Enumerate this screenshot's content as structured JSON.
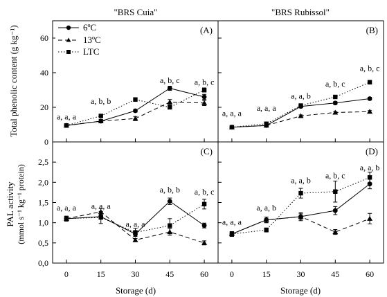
{
  "figure": {
    "column_titles": [
      "\"BRS Cuia\"",
      "\"BRS Rubissol\""
    ],
    "xlabel": "Storage (d)",
    "ylabel_top": "Total phenolic content (g kg⁻¹)",
    "ylabel_bottom_line1": "PAL activity",
    "ylabel_bottom_line2": "(mmol s⁻¹ kg⁻¹ protein)",
    "legend": [
      {
        "label": "6ºC",
        "style": "solid",
        "marker": "circle"
      },
      {
        "label": "13ºC",
        "style": "dashed",
        "marker": "triangle"
      },
      {
        "label": "LTC",
        "style": "dotted",
        "marker": "square"
      }
    ]
  },
  "chart_data": [
    {
      "type": "line",
      "panel": "(A)",
      "x": [
        0,
        15,
        30,
        45,
        60
      ],
      "xlim": [
        -6,
        66
      ],
      "ylim": [
        0,
        70
      ],
      "yticks": [
        "0",
        "20",
        "40",
        "60"
      ],
      "ytick_values": [
        0,
        20,
        40,
        60
      ],
      "series": [
        {
          "name": "6ºC",
          "values": [
            9.5,
            12,
            18,
            31,
            26
          ],
          "errors": [
            0.5,
            1,
            0.8,
            1.2,
            1.5
          ]
        },
        {
          "name": "13ºC",
          "values": [
            9.5,
            12,
            13.5,
            23,
            22.5
          ],
          "errors": [
            0.5,
            1,
            1.2,
            1.5,
            1.5
          ]
        },
        {
          "name": "LTC",
          "values": [
            9.5,
            15,
            24.5,
            20,
            30
          ],
          "errors": [
            0.5,
            0.8,
            0.8,
            1,
            1.2
          ]
        }
      ],
      "annotations": [
        {
          "x": 0,
          "y": 13,
          "text": "a, a, a"
        },
        {
          "x": 15,
          "y": 22,
          "text": "a, b, b"
        },
        {
          "x": 45,
          "y": 34,
          "text": "a, b, c"
        },
        {
          "x": 60,
          "y": 33,
          "text": "a, b, c"
        }
      ]
    },
    {
      "type": "line",
      "panel": "(B)",
      "x": [
        0,
        15,
        30,
        45,
        60
      ],
      "xlim": [
        -6,
        66
      ],
      "ylim": [
        0,
        70
      ],
      "yticks": [
        "0",
        "20",
        "40",
        "60"
      ],
      "ytick_values": [
        0,
        20,
        40,
        60
      ],
      "series": [
        {
          "name": "6ºC",
          "values": [
            8.5,
            9.5,
            20.5,
            22.5,
            25
          ],
          "errors": [
            0.4,
            0.5,
            0.8,
            0.8,
            0.8
          ]
        },
        {
          "name": "13ºC",
          "values": [
            8.5,
            9.5,
            15,
            17,
            17.5
          ],
          "errors": [
            0.4,
            0.5,
            0.6,
            0.6,
            0.6
          ]
        },
        {
          "name": "LTC",
          "values": [
            8.5,
            10.5,
            21,
            26,
            34.5
          ],
          "errors": [
            0.4,
            0.5,
            0.8,
            0.8,
            1
          ]
        }
      ],
      "annotations": [
        {
          "x": 0,
          "y": 15,
          "text": "a, a, a"
        },
        {
          "x": 15,
          "y": 18,
          "text": "a, a, a"
        },
        {
          "x": 30,
          "y": 25,
          "text": "a, a, b"
        },
        {
          "x": 45,
          "y": 32,
          "text": "a, b, c"
        },
        {
          "x": 60,
          "y": 41,
          "text": "a, b, c"
        }
      ]
    },
    {
      "type": "line",
      "panel": "(C)",
      "x": [
        0,
        15,
        30,
        45,
        60
      ],
      "xlim": [
        -6,
        66
      ],
      "ylim": [
        0,
        3
      ],
      "yticks": [
        "0,0",
        "0,5",
        "1,0",
        "1,5",
        "2,0",
        "2,5"
      ],
      "ytick_values": [
        0,
        0.5,
        1.0,
        1.5,
        2.0,
        2.5
      ],
      "series": [
        {
          "name": "6ºC",
          "values": [
            1.1,
            1.15,
            0.72,
            1.53,
            0.93
          ],
          "errors": [
            0.06,
            0.06,
            0.05,
            0.08,
            0.06
          ]
        },
        {
          "name": "13ºC",
          "values": [
            1.1,
            1.27,
            0.57,
            0.77,
            0.5
          ],
          "errors": [
            0.06,
            0.08,
            0.04,
            0.08,
            0.05
          ]
        },
        {
          "name": "LTC",
          "values": [
            1.1,
            1.13,
            0.76,
            0.93,
            1.46
          ],
          "errors": [
            0.06,
            0.15,
            0.1,
            0.17,
            0.12
          ]
        }
      ],
      "annotations": [
        {
          "x": 0,
          "y": 1.3,
          "text": "a, a, a"
        },
        {
          "x": 15,
          "y": 1.35,
          "text": "a, a, a"
        },
        {
          "x": 30,
          "y": 0.9,
          "text": "a, a, a"
        },
        {
          "x": 45,
          "y": 1.75,
          "text": "a, b, b"
        },
        {
          "x": 60,
          "y": 1.7,
          "text": "a, b, c"
        }
      ]
    },
    {
      "type": "line",
      "panel": "(D)",
      "x": [
        0,
        15,
        30,
        45,
        60
      ],
      "xlim": [
        -6,
        66
      ],
      "ylim": [
        0,
        3
      ],
      "yticks": [
        "0,0",
        "0,5",
        "1,0",
        "1,5",
        "2,0",
        "2,5"
      ],
      "ytick_values": [
        0,
        0.5,
        1.0,
        1.5,
        2.0,
        2.5
      ],
      "series": [
        {
          "name": "6ºC",
          "values": [
            0.72,
            1.07,
            1.15,
            1.3,
            1.96
          ],
          "errors": [
            0.06,
            0.07,
            0.1,
            0.1,
            0.12
          ]
        },
        {
          "name": "13ºC",
          "values": [
            0.72,
            1.07,
            1.15,
            0.77,
            1.1
          ],
          "errors": [
            0.06,
            0.07,
            0.07,
            0.06,
            0.13
          ]
        },
        {
          "name": "LTC",
          "values": [
            0.72,
            0.82,
            1.73,
            1.77,
            2.12
          ],
          "errors": [
            0.06,
            0.05,
            0.12,
            0.26,
            0.13
          ]
        }
      ],
      "annotations": [
        {
          "x": 0,
          "y": 0.95,
          "text": "a, a, a"
        },
        {
          "x": 15,
          "y": 1.3,
          "text": "a, a, b"
        },
        {
          "x": 30,
          "y": 1.98,
          "text": "a, a, b"
        },
        {
          "x": 45,
          "y": 2.1,
          "text": "a, b, c"
        },
        {
          "x": 60,
          "y": 2.3,
          "text": "a, a, b"
        }
      ]
    }
  ]
}
